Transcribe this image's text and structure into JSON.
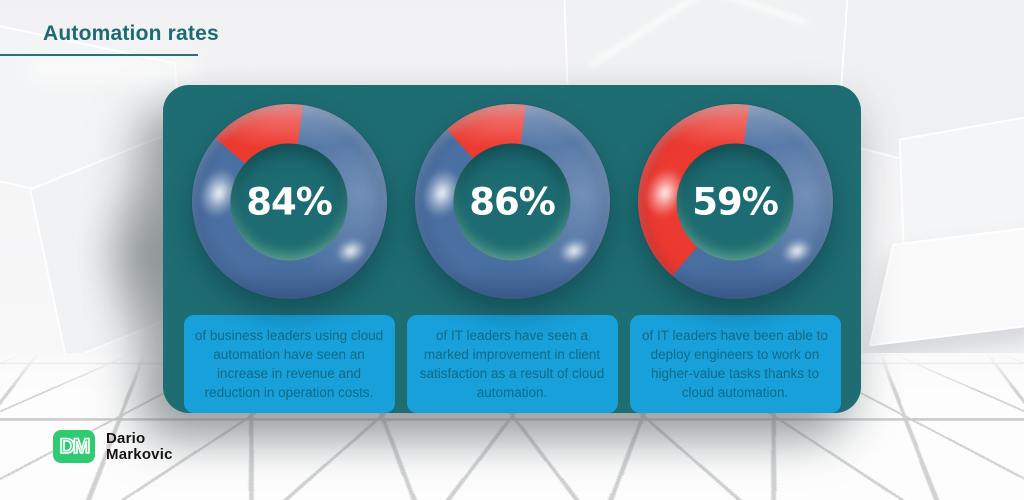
{
  "header": {
    "title": "Automation rates"
  },
  "chart_data": {
    "type": "pie",
    "subtype": "donut-gauge",
    "title": "Automation rates",
    "legend": "none",
    "series": [
      {
        "label": "84%",
        "value": 84,
        "remainder": 16,
        "description": "of business leaders using cloud automation have seen an increase in revenue and reduction in operation costs."
      },
      {
        "label": "86%",
        "value": 86,
        "remainder": 14,
        "description": "of IT leaders have seen a marked improvement in client satisfaction as a result of cloud automation."
      },
      {
        "label": "59%",
        "value": 59,
        "remainder": 41,
        "description": "of IT leaders have been able to deploy engineers to work on higher-value tasks thanks to cloud automation."
      }
    ],
    "segment_colors": {
      "filled": "#4a6fa1",
      "remainder": "#ed3a31"
    }
  },
  "palette": {
    "title_teal": "#1d6a73",
    "panel_teal": "#1e6d73",
    "callout_blue": "#18a0db",
    "callout_text": "#0f6a84",
    "donut_blue": "#4a6fa1",
    "donut_red": "#ed3a31",
    "logo_green": "#2ecb72"
  },
  "logo": {
    "monogram": "DM",
    "name_line1": "Dario",
    "name_line2": "Markovic"
  }
}
